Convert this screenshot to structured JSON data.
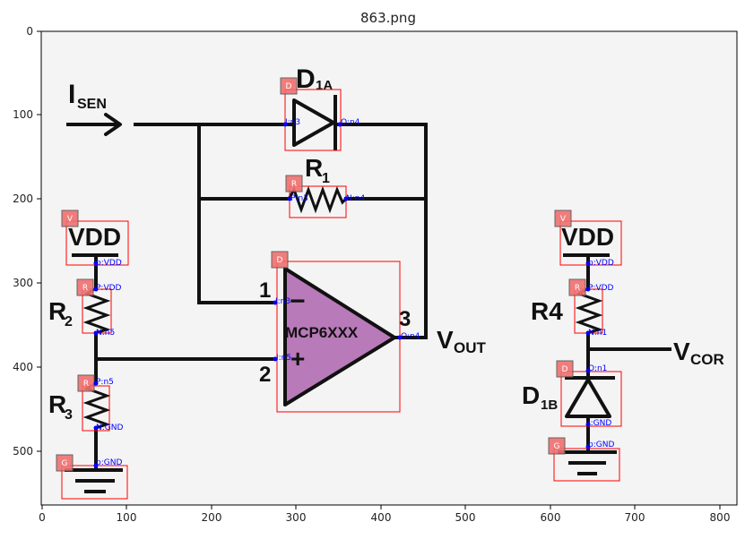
{
  "figure": {
    "title": "863.png",
    "x_ticks": [
      "0",
      "100",
      "200",
      "300",
      "400",
      "500",
      "600",
      "700",
      "800"
    ],
    "y_ticks": [
      "0",
      "100",
      "200",
      "300",
      "400",
      "500"
    ]
  },
  "schematic": {
    "isen_main": "I",
    "isen_sub": "SEN",
    "d1a_main": "D",
    "d1a_sub": "1A",
    "r1_main": "R",
    "r1_sub": "1",
    "vdd_left": "VDD",
    "r2_main": "R",
    "r2_sub": "2",
    "r3_main": "R",
    "r3_sub": "3",
    "pin1": "1",
    "pin2": "2",
    "pin3": "3",
    "opamp_label": "MCP6XXX",
    "minus_sign": "−",
    "plus_sign": "+",
    "vout_main": "V",
    "vout_sub": "OUT",
    "vdd_right": "VDD",
    "r4_label": "R4",
    "vcor_main": "V",
    "vcor_sub": "COR",
    "d1b_main": "D",
    "d1b_sub": "1B"
  },
  "annotations": {
    "badges": {
      "d1a": "D",
      "r1": "R",
      "vdd_left": "V",
      "r2": "R",
      "r3": "R",
      "gnd_left": "G",
      "opamp": "D",
      "vdd_right": "V",
      "r4": "R",
      "d1b": "D",
      "gnd_right": "G"
    },
    "pins": {
      "d1a_in": "I:n3",
      "d1a_out": "O:n4",
      "r1_p": "P:n3",
      "r1_n": "N:n4",
      "vdd_left": "p:VDD",
      "r2_p": "P:VDD",
      "r2_n": "N:n5",
      "r3_p": "P:n5",
      "r3_n": "N:GND",
      "gnd_left": "p:GND",
      "opamp_in_minus": "I:n3",
      "opamp_in_plus": "I:n5",
      "opamp_out": "O:n4",
      "vdd_right": "p:VDD",
      "r4_p": "P:VDD",
      "r4_n": "N:n1",
      "d1b_out": "O:n1",
      "d1b_in": "I:GND",
      "gnd_right": "p:GND"
    }
  },
  "colors": {
    "annotation_box": "#ff0000",
    "badge_fill": "#f07070",
    "pin_dot": "#0000ff",
    "opamp_fill": "#b87ab8",
    "wire": "#111111",
    "plot_bg": "#f4f4f4"
  }
}
